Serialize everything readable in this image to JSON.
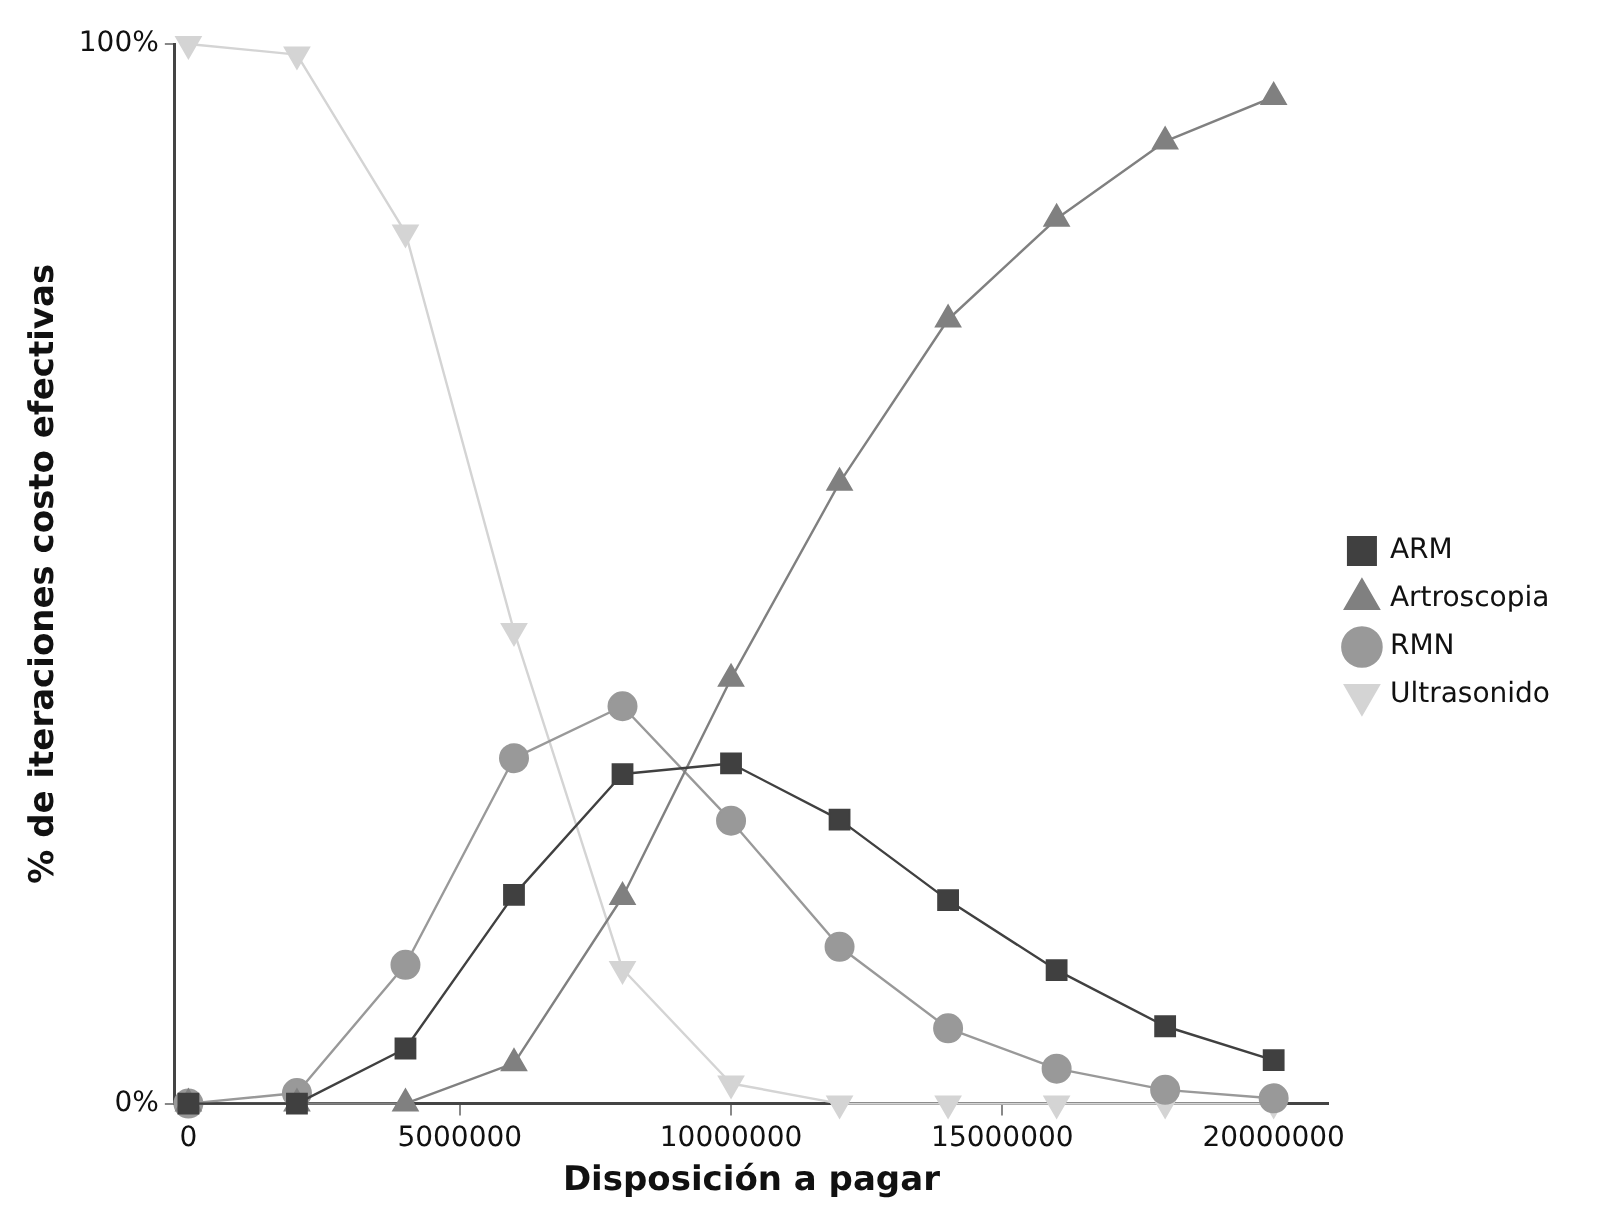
{
  "chart_data": {
    "type": "line",
    "xlabel": "Disposición a pagar",
    "ylabel": "% de iteraciones costo efectivas",
    "x": [
      0,
      2000000,
      4000000,
      6000000,
      8000000,
      10000000,
      12000000,
      14000000,
      16000000,
      18000000,
      20000000
    ],
    "xlim": [
      -250000,
      21000000
    ],
    "xticks": [
      0,
      5000000,
      10000000,
      15000000,
      20000000
    ],
    "ylim": [
      0,
      100
    ],
    "yticks": [
      {
        "value": 0,
        "label": "0%"
      },
      {
        "value": 100,
        "label": "100%"
      }
    ],
    "grid": false,
    "legend": "right",
    "line_style": "solid",
    "series": [
      {
        "name": "ARM",
        "color": "#404040",
        "marker": "square",
        "values": [
          0,
          0,
          5.2,
          19.7,
          31.1,
          32.1,
          26.8,
          19.2,
          12.6,
          7.3,
          4.1
        ]
      },
      {
        "name": "Artroscopia",
        "color": "#808080",
        "marker": "triangle",
        "values": [
          0,
          0,
          0,
          3.8,
          19.5,
          40.1,
          58.6,
          74.0,
          83.5,
          90.8,
          95.0
        ]
      },
      {
        "name": "RMN",
        "color": "#999999",
        "marker": "circle",
        "values": [
          0,
          1.0,
          13.1,
          32.6,
          37.5,
          26.7,
          14.8,
          7.1,
          3.3,
          1.3,
          0.5
        ]
      },
      {
        "name": "Ultrasonido",
        "color": "#d4d4d4",
        "marker": "triangle-down",
        "values": [
          100,
          99.0,
          82.2,
          44.6,
          12.7,
          1.9,
          0,
          0,
          0,
          0,
          0
        ]
      }
    ]
  }
}
